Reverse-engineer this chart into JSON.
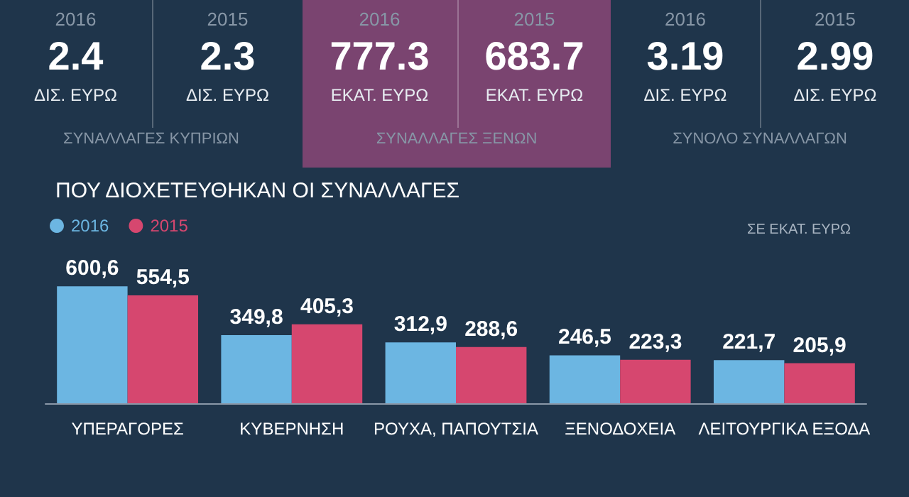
{
  "chart_data": [
    {
      "type": "other",
      "title": "ΣΥΝΑΛΛΑΓΕΣ ΚΥΠΡΙΩΝ",
      "categories": [
        "2016",
        "2015"
      ],
      "values": [
        2.4,
        2.3
      ],
      "data_labels": true,
      "ylabel": "ΔΙΣ. ΕΥΡΩ",
      "color": "#1f354b"
    },
    {
      "type": "other",
      "title": "ΣΥΝΑΛΛΑΓΕΣ ΞΕΝΩΝ",
      "categories": [
        "2016",
        "2015"
      ],
      "values": [
        777.3,
        683.7
      ],
      "data_labels": true,
      "ylabel": "ΕΚΑΤ. ΕΥΡΩ",
      "color": "#7a4470"
    },
    {
      "type": "other",
      "title": "ΣΥΝΟΛΟ ΣΥΝΑΛΛΑΓΩΝ",
      "categories": [
        "2016",
        "2015"
      ],
      "values": [
        3.19,
        2.99
      ],
      "data_labels": true,
      "ylabel": "ΔΙΣ. ΕΥΡΩ",
      "color": "#1f354b"
    },
    {
      "type": "bar",
      "title": "ΠΟΥ ΔΙΟΧΕΤΕΥΘΗΚΑΝ ΟΙ ΣΥΝΑΛΛΑΓΕΣ",
      "ylabel": "ΣΕ ΕΚΑΤ. ΕΥΡΩ",
      "legend": "top left",
      "categories": [
        "ΥΠΕΡΑΓΟΡΕΣ",
        "ΚΥΒΕΡΝΗΣΗ",
        "ΡΟΥΧΑ, ΠΑΠΟΥΤΣΙΑ",
        "ΞΕΝΟΔΟΧΕΙΑ",
        "ΛΕΙΤΟΥΡΓΙΚΑ ΕΞΟΔΑ"
      ],
      "series": [
        {
          "name": "2016",
          "color": "#6cb6e2",
          "values": [
            600.6,
            349.8,
            312.9,
            246.5,
            221.7
          ],
          "value_labels": [
            "600,6",
            "349,8",
            "312,9",
            "246,5",
            "221,7"
          ]
        },
        {
          "name": "2015",
          "color": "#d6476f",
          "values": [
            554.5,
            405.3,
            288.6,
            223.3,
            205.9
          ],
          "value_labels": [
            "554,5",
            "405,3",
            "288,6",
            "223,3",
            "205,9"
          ]
        }
      ]
    }
  ]
}
